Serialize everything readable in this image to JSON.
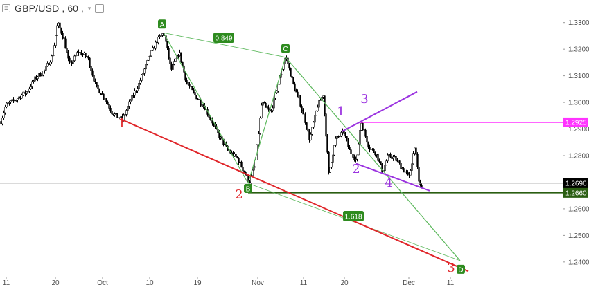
{
  "header": {
    "symbol": "GBP/USD",
    "interval": "60",
    "separator": ",",
    "menu_icon": "hamburger-icon",
    "dropdown_icon": "chevron-down-icon",
    "toggle_icon": "square-toggle-icon"
  },
  "colors": {
    "candles": "#000000",
    "pattern": "#5cb85c",
    "pattern_dark": "#2e8b1f",
    "wave_red": "#e0262a",
    "wave_purple": "#9b33e0",
    "magenta_line": "#ff33ff",
    "support_line": "#2a5e12"
  },
  "chart_data": {
    "type": "candlestick",
    "y_ticks": [
      "1.3300",
      "1.3200",
      "1.3100",
      "1.3000",
      "1.2900",
      "1.2800",
      "1.2600",
      "1.2500",
      "1.2400"
    ],
    "x_ticks": [
      "11",
      "20",
      "Oct",
      "10",
      "19",
      "Nov",
      "11",
      "20",
      "Dec",
      "11"
    ],
    "price_labels": [
      {
        "text": "1.2925",
        "price": 1.2925,
        "color": "#ff33ff"
      },
      {
        "text": "1.2696",
        "price": 1.2696,
        "color": "#000000"
      },
      {
        "text": "1.2660",
        "price": 1.266,
        "color": "#2a5e12"
      }
    ],
    "harmonic_points": [
      {
        "label": "A",
        "price": 1.326
      },
      {
        "label": "B",
        "price": 1.266
      },
      {
        "label": "C",
        "price": 1.317
      },
      {
        "label": "D",
        "price": 1.241
      }
    ],
    "ratios": [
      "0.849",
      "1.618"
    ],
    "waves_red": [
      "1",
      "2",
      "3"
    ],
    "waves_purple": [
      "1",
      "2",
      "3",
      "4"
    ],
    "price_range": [
      1.2345,
      1.3385
    ]
  }
}
